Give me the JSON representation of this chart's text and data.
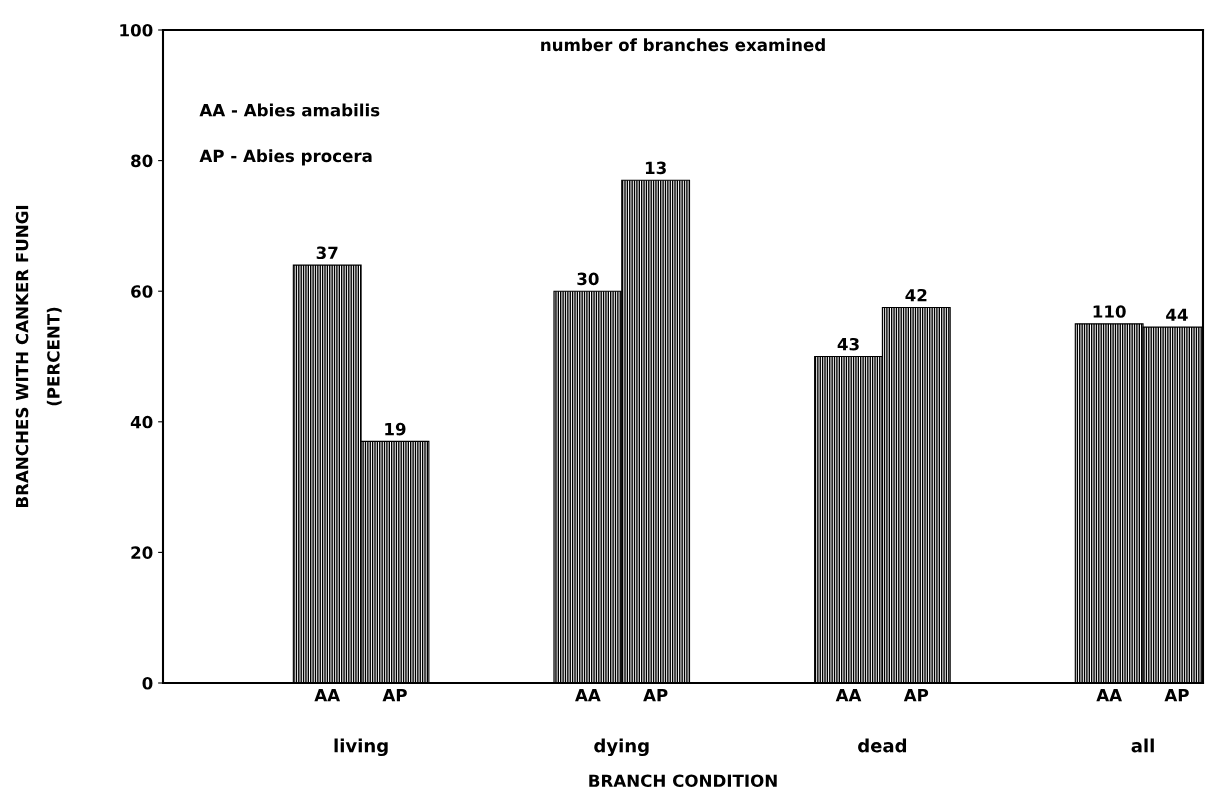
{
  "chart_data": {
    "type": "bar",
    "xlabel": "BRANCH CONDITION",
    "ylabel": "BRANCHES WITH CANKER FUNGI\n(PERCENT)",
    "categories": [
      "living",
      "dying",
      "dead",
      "all"
    ],
    "series": [
      {
        "name": "AA",
        "color": "#000000",
        "values": [
          64,
          60,
          50,
          55
        ]
      },
      {
        "name": "AP",
        "color": "#000000",
        "values": [
          37,
          77,
          57.5,
          54.5
        ]
      }
    ],
    "ylim": [
      0,
      100
    ],
    "yticks": [
      0,
      20,
      40,
      60,
      80,
      100
    ],
    "grid": false,
    "legend": false,
    "annotations": [
      "number of branches examined",
      "AA - Abies amabilis",
      "AP - Abies procera",
      {
        "text": "37",
        "x": "living",
        "y": 64
      },
      {
        "text": "19",
        "x": "living",
        "y": 37
      },
      {
        "text": "30",
        "x": "dying",
        "y": 60
      },
      {
        "text": "13",
        "x": "dying",
        "y": 77
      },
      {
        "text": "43",
        "x": "dead",
        "y": 50
      },
      {
        "text": "42",
        "x": "dead",
        "y": 57.5
      },
      {
        "text": "110",
        "x": "all",
        "y": 55
      },
      {
        "text": "44",
        "x": "all",
        "y": 54.5
      }
    ]
  }
}
